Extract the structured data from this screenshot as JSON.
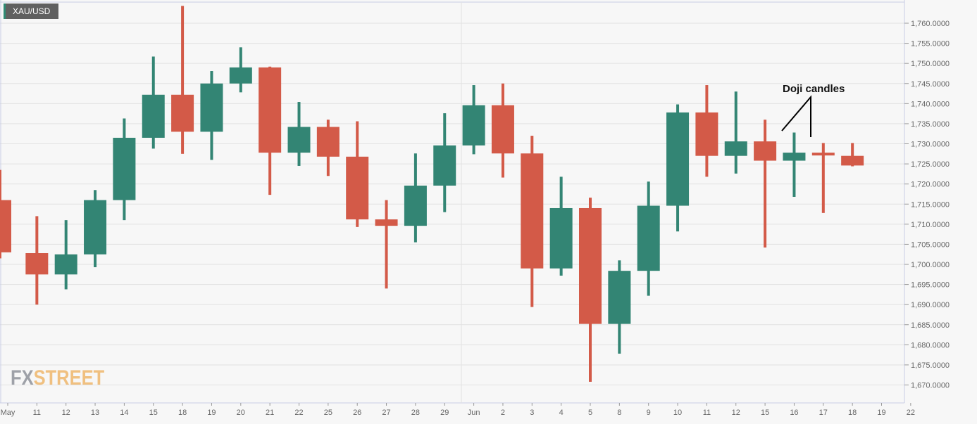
{
  "header": {
    "symbol": "XAU/USD",
    "symbol_accent": "#2e8b74"
  },
  "annotation": {
    "text": "Doji candles"
  },
  "logo": {
    "part1": "FX",
    "part2": "STREET"
  },
  "colors": {
    "up": "#338574",
    "down": "#d35a48",
    "grid": "#e2e2e2",
    "background": "#f7f7f7"
  },
  "chart_data": {
    "type": "candlestick",
    "title": "XAU/USD",
    "xlabel": "",
    "ylabel": "",
    "ylim": [
      1665,
      1765
    ],
    "y_ticks": [
      "1,670.0000",
      "1,675.0000",
      "1,680.0000",
      "1,685.0000",
      "1,690.0000",
      "1,695.0000",
      "1,700.0000",
      "1,705.0000",
      "1,710.0000",
      "1,715.0000",
      "1,720.0000",
      "1,725.0000",
      "1,730.0000",
      "1,735.0000",
      "1,740.0000",
      "1,745.0000",
      "1,750.0000",
      "1,755.0000",
      "1,760.0000"
    ],
    "x_ticks": [
      "May",
      "11",
      "12",
      "13",
      "14",
      "15",
      "18",
      "19",
      "20",
      "21",
      "22",
      "25",
      "26",
      "27",
      "28",
      "29",
      "Jun",
      "2",
      "3",
      "4",
      "5",
      "8",
      "9",
      "10",
      "11",
      "12",
      "15",
      "16",
      "17",
      "18",
      "19",
      "22"
    ],
    "grid": true,
    "annotations": [
      {
        "text": "Doji candles",
        "points_to": [
          "Jun 16",
          "Jun 17"
        ]
      }
    ],
    "candles": [
      {
        "date": "May 8",
        "open": 1716.0,
        "high": 1723.5,
        "low": 1701.5,
        "close": 1703.0
      },
      {
        "date": "May 11",
        "open": 1702.8,
        "high": 1712.0,
        "low": 1690.0,
        "close": 1697.5
      },
      {
        "date": "May 12",
        "open": 1697.5,
        "high": 1711.0,
        "low": 1693.8,
        "close": 1702.5
      },
      {
        "date": "May 13",
        "open": 1702.5,
        "high": 1718.5,
        "low": 1699.3,
        "close": 1716.0
      },
      {
        "date": "May 14",
        "open": 1716.0,
        "high": 1736.3,
        "low": 1711.0,
        "close": 1731.5
      },
      {
        "date": "May 15",
        "open": 1731.5,
        "high": 1751.7,
        "low": 1728.8,
        "close": 1742.2
      },
      {
        "date": "May 18",
        "open": 1742.2,
        "high": 1764.3,
        "low": 1727.5,
        "close": 1733.0
      },
      {
        "date": "May 19",
        "open": 1733.0,
        "high": 1748.1,
        "low": 1726.0,
        "close": 1745.0
      },
      {
        "date": "May 20",
        "open": 1745.0,
        "high": 1754.0,
        "low": 1742.8,
        "close": 1749.0
      },
      {
        "date": "May 21",
        "open": 1749.0,
        "high": 1749.2,
        "low": 1717.3,
        "close": 1727.8
      },
      {
        "date": "May 22",
        "open": 1727.8,
        "high": 1740.4,
        "low": 1724.5,
        "close": 1734.2
      },
      {
        "date": "May 25",
        "open": 1734.2,
        "high": 1736.0,
        "low": 1722.0,
        "close": 1726.8
      },
      {
        "date": "May 26",
        "open": 1726.8,
        "high": 1735.6,
        "low": 1709.3,
        "close": 1711.2
      },
      {
        "date": "May 27",
        "open": 1711.2,
        "high": 1716.0,
        "low": 1694.0,
        "close": 1709.6
      },
      {
        "date": "May 28",
        "open": 1709.6,
        "high": 1727.6,
        "low": 1705.5,
        "close": 1719.6
      },
      {
        "date": "May 29",
        "open": 1719.6,
        "high": 1737.6,
        "low": 1713.0,
        "close": 1729.6
      },
      {
        "date": "Jun 1",
        "open": 1729.6,
        "high": 1744.6,
        "low": 1727.4,
        "close": 1739.6
      },
      {
        "date": "Jun 2",
        "open": 1739.6,
        "high": 1745.0,
        "low": 1721.6,
        "close": 1727.6
      },
      {
        "date": "Jun 3",
        "open": 1727.6,
        "high": 1732.0,
        "low": 1689.4,
        "close": 1699.0
      },
      {
        "date": "Jun 4",
        "open": 1699.0,
        "high": 1721.8,
        "low": 1697.2,
        "close": 1714.0
      },
      {
        "date": "Jun 5",
        "open": 1714.0,
        "high": 1716.6,
        "low": 1670.8,
        "close": 1685.2
      },
      {
        "date": "Jun 8",
        "open": 1685.2,
        "high": 1701.0,
        "low": 1677.8,
        "close": 1698.4
      },
      {
        "date": "Jun 9",
        "open": 1698.4,
        "high": 1720.6,
        "low": 1692.2,
        "close": 1714.6
      },
      {
        "date": "Jun 10",
        "open": 1714.6,
        "high": 1739.8,
        "low": 1708.2,
        "close": 1737.8
      },
      {
        "date": "Jun 11",
        "open": 1737.8,
        "high": 1744.6,
        "low": 1721.8,
        "close": 1727.0
      },
      {
        "date": "Jun 12",
        "open": 1727.0,
        "high": 1743.0,
        "low": 1722.6,
        "close": 1730.6
      },
      {
        "date": "Jun 15",
        "open": 1730.6,
        "high": 1736.0,
        "low": 1704.2,
        "close": 1725.8
      },
      {
        "date": "Jun 16",
        "open": 1725.8,
        "high": 1732.8,
        "low": 1716.8,
        "close": 1727.8
      },
      {
        "date": "Jun 17",
        "open": 1727.8,
        "high": 1730.2,
        "low": 1712.8,
        "close": 1727.2
      },
      {
        "date": "Jun 18",
        "open": 1727.0,
        "high": 1730.2,
        "low": 1724.4,
        "close": 1724.6
      }
    ]
  }
}
